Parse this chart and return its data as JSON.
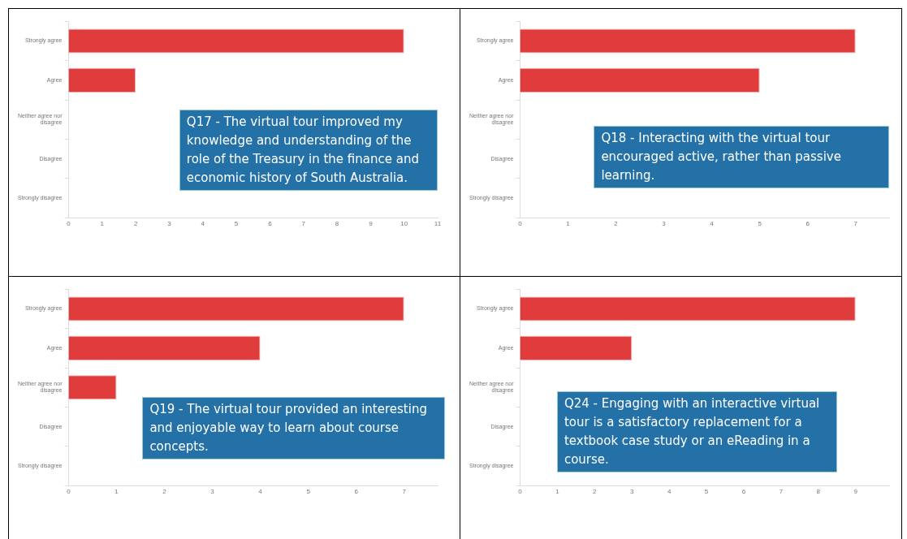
{
  "chart_data": [
    {
      "type": "bar",
      "orientation": "horizontal",
      "title": "Q17 - The virtual tour improved my knowledge and understanding of the role of the Treasury in the finance and economic history of South Australia.",
      "categories": [
        "Strongly agree",
        "Agree",
        "Neither agree nor disagree",
        "Disagree",
        "Strongly disagree"
      ],
      "values": [
        10,
        2,
        0,
        0,
        0
      ],
      "color": "#e03c3c",
      "xlim": [
        0,
        11
      ],
      "xticks": [
        0,
        1,
        2,
        3,
        4,
        5,
        6,
        7,
        8,
        9,
        10,
        11
      ],
      "grid": false,
      "legend": false
    },
    {
      "type": "bar",
      "orientation": "horizontal",
      "title": "Q18 - Interacting with the virtual tour encouraged active, rather than passive learning.",
      "categories": [
        "Strongly agree",
        "Agree",
        "Neither agree nor disagree",
        "Disagree",
        "Strongly disagree"
      ],
      "values": [
        7,
        5,
        0,
        0,
        0
      ],
      "color": "#e03c3c",
      "xlim": [
        0,
        7.7
      ],
      "xticks": [
        0,
        1,
        2,
        3,
        4,
        5,
        6,
        7
      ],
      "grid": false,
      "legend": false
    },
    {
      "type": "bar",
      "orientation": "horizontal",
      "title": "Q19 - The virtual tour provided an interesting and enjoyable way to learn about course concepts.",
      "categories": [
        "Strongly agree",
        "Agree",
        "Neither agree nor disagree",
        "Disagree",
        "Strongly disagree"
      ],
      "values": [
        7,
        4,
        1,
        0,
        0
      ],
      "color": "#e03c3c",
      "xlim": [
        0,
        7.7
      ],
      "xticks": [
        0,
        1,
        2,
        3,
        4,
        5,
        6,
        7
      ],
      "grid": false,
      "legend": false
    },
    {
      "type": "bar",
      "orientation": "horizontal",
      "title": "Q24 - Engaging with an interactive virtual tour is a satisfactory replacement for a textbook case study or an eReading in a course.",
      "categories": [
        "Strongly agree",
        "Agree",
        "Neither agree nor disagree",
        "Disagree",
        "Strongly disagree"
      ],
      "values": [
        9,
        3,
        0,
        0,
        0
      ],
      "color": "#e03c3c",
      "xlim": [
        0,
        9.9
      ],
      "xticks": [
        0,
        1,
        2,
        3,
        4,
        5,
        6,
        7,
        8,
        9
      ],
      "grid": false,
      "legend": false
    }
  ]
}
